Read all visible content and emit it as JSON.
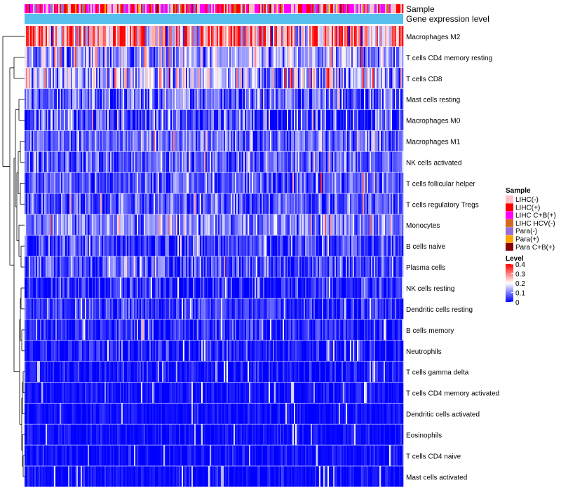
{
  "chart_data": {
    "type": "heatmap",
    "title": "",
    "annotation_tracks": [
      "Sample",
      "Gene expression level"
    ],
    "rows": [
      {
        "name": "Macrophages M2",
        "mean": 0.27,
        "spread": 0.12
      },
      {
        "name": "T cells CD4 memory resting",
        "mean": 0.12,
        "spread": 0.07
      },
      {
        "name": "T cells CD8",
        "mean": 0.15,
        "spread": 0.08
      },
      {
        "name": "Mast cells resting",
        "mean": 0.08,
        "spread": 0.06
      },
      {
        "name": "Macrophages M0",
        "mean": 0.06,
        "spread": 0.07
      },
      {
        "name": "Macrophages M1",
        "mean": 0.08,
        "spread": 0.05
      },
      {
        "name": "NK cells activated",
        "mean": 0.07,
        "spread": 0.05
      },
      {
        "name": "T cells follicular helper",
        "mean": 0.07,
        "spread": 0.05
      },
      {
        "name": "T cells regulatory  Tregs",
        "mean": 0.07,
        "spread": 0.05
      },
      {
        "name": "Monocytes",
        "mean": 0.1,
        "spread": 0.05
      },
      {
        "name": "B cells naive",
        "mean": 0.05,
        "spread": 0.05
      },
      {
        "name": "Plasma cells",
        "mean": 0.06,
        "spread": 0.05
      },
      {
        "name": "NK cells resting",
        "mean": 0.03,
        "spread": 0.04
      },
      {
        "name": "Dendritic cells resting",
        "mean": 0.04,
        "spread": 0.04
      },
      {
        "name": "B cells memory",
        "mean": 0.03,
        "spread": 0.04
      },
      {
        "name": "Neutrophils",
        "mean": 0.02,
        "spread": 0.04
      },
      {
        "name": "T cells gamma delta",
        "mean": 0.01,
        "spread": 0.03
      },
      {
        "name": "T cells CD4 memory activated",
        "mean": 0.01,
        "spread": 0.02
      },
      {
        "name": "Dendritic cells activated",
        "mean": 0.01,
        "spread": 0.02
      },
      {
        "name": "Eosinophils",
        "mean": 0.01,
        "spread": 0.02
      },
      {
        "name": "T cells CD4 naive",
        "mean": 0.01,
        "spread": 0.02
      },
      {
        "name": "Mast cells activated",
        "mean": 0.01,
        "spread": 0.02
      }
    ],
    "legend_sample": {
      "title": "Sample",
      "items": [
        {
          "label": "LIHC(-)",
          "color": "#FFC0CB"
        },
        {
          "label": "LIHC(+)",
          "color": "#FF0000"
        },
        {
          "label": "LIHC C+B(+)",
          "color": "#FF00FF"
        },
        {
          "label": "LIHC HCV(-)",
          "color": "#D2691E"
        },
        {
          "label": "Para(-)",
          "color": "#9370DB"
        },
        {
          "label": "Para(+)",
          "color": "#FFA500"
        },
        {
          "label": "Para C+B(+)",
          "color": "#8B0000"
        }
      ]
    },
    "legend_level": {
      "title": "Level",
      "range": [
        0,
        0.4
      ],
      "ticks": [
        "0.4",
        "0.3",
        "0.2",
        "0.1",
        "0"
      ],
      "colors": [
        "#0000FF",
        "#FFFFFF",
        "#FF0000"
      ]
    },
    "gene_expression_color": "#55C0EE"
  }
}
